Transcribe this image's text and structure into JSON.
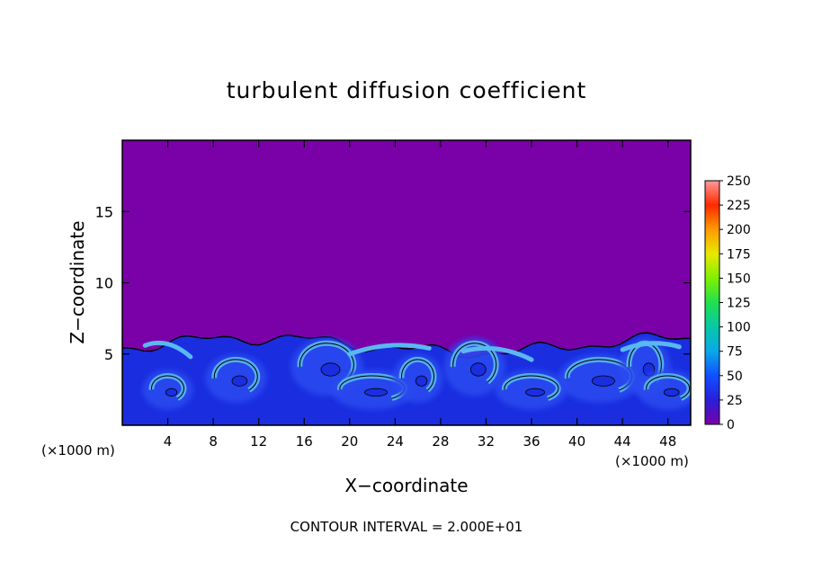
{
  "chart_data": {
    "type": "heatmap",
    "title": "turbulent diffusion coefficient",
    "xlabel": "X−coordinate",
    "ylabel": "Z−coordinate",
    "x_unit": "(×1000 m)",
    "x_ticks": [
      "4",
      "8",
      "12",
      "16",
      "20",
      "24",
      "28",
      "32",
      "36",
      "40",
      "44",
      "48"
    ],
    "x_tick_values": [
      4,
      8,
      12,
      16,
      20,
      24,
      28,
      32,
      36,
      40,
      44,
      48
    ],
    "xlim": [
      0,
      50
    ],
    "y_ticks": [
      "5",
      "10",
      "15"
    ],
    "y_tick_values": [
      5,
      10,
      15
    ],
    "ylim": [
      0,
      20
    ],
    "colorbar": {
      "labels": [
        "0",
        "25",
        "50",
        "75",
        "100",
        "125",
        "150",
        "175",
        "200",
        "225",
        "250"
      ],
      "values": [
        0,
        25,
        50,
        75,
        100,
        125,
        150,
        175,
        200,
        225,
        250
      ],
      "colors": [
        "#7a00a8",
        "#2a1fd8",
        "#1050ff",
        "#0aa8e8",
        "#08c8a8",
        "#20e050",
        "#80f000",
        "#e8e800",
        "#ff9a00",
        "#ff2a00",
        "#ff9a9a"
      ]
    },
    "contour_interval_label": "CONTOUR INTERVAL = 2.000E+01",
    "background_value_color": "#7a00a8",
    "turbulent_layer_top_z": 6,
    "turbulent_layer_colors": [
      "#1a2ee0",
      "#2a4cf0",
      "#3a7cf0",
      "#5ab8f0"
    ],
    "eddy_centers_x": [
      4,
      10,
      18,
      22,
      26,
      31,
      36,
      42,
      46,
      48
    ]
  }
}
